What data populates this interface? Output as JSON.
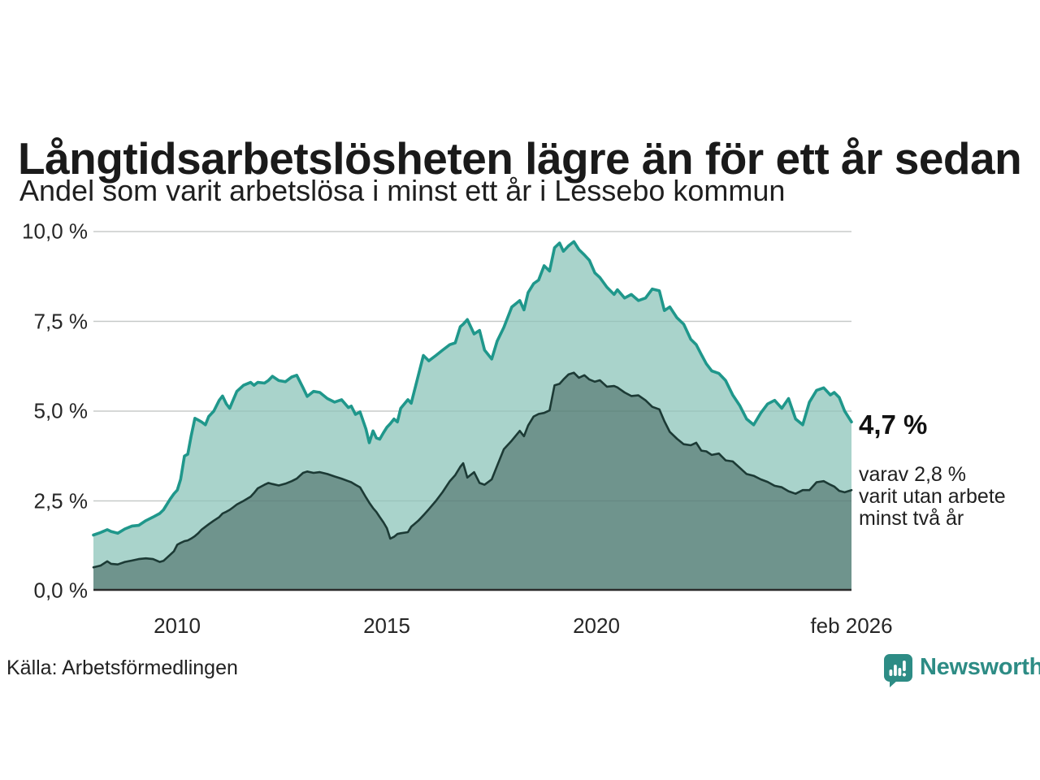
{
  "header": {
    "title": "Långtidsarbetslösheten lägre än för ett år sedan",
    "subtitle": "Andel som varit arbetslösa i minst ett år i Lessebo kommun"
  },
  "annotation": {
    "value_label": "4,7 %",
    "secondary_line1": "varav 2,8 %",
    "secondary_line2": "varit utan arbete",
    "secondary_line3": "minst två år"
  },
  "source": "Källa: Arbetsförmedlingen",
  "logo": {
    "text": "Newsworthy",
    "icon": "newsworthy-chart-bubble-icon",
    "color": "#2d8c85"
  },
  "colors": {
    "series1_line": "#1f978b",
    "series1_fill": "#a9d3cb",
    "series2_line": "#1c3a35",
    "series2_fill": "#6f948d",
    "gridline": "#d9d9d9",
    "axis": "#2b2b2b",
    "text": "#1a1a1a"
  },
  "chart_data": {
    "type": "area",
    "title": "Långtidsarbetslösheten lägre än för ett år sedan",
    "subtitle": "Andel som varit arbetslösa i minst ett år i Lessebo kommun",
    "xlabel": "",
    "ylabel": "",
    "xlim": [
      2008.0,
      2026.083
    ],
    "ylim": [
      0,
      10
    ],
    "grid": "horizontal",
    "y_ticks": [
      {
        "value": 10.0,
        "label": "10,0 %"
      },
      {
        "value": 7.5,
        "label": "7,5 %"
      },
      {
        "value": 5.0,
        "label": "5,0 %"
      },
      {
        "value": 2.5,
        "label": "2,5 %"
      },
      {
        "value": 0.0,
        "label": "0,0 %"
      }
    ],
    "x_ticks": [
      {
        "value": 2010,
        "label": "2010"
      },
      {
        "value": 2015,
        "label": "2015"
      },
      {
        "value": 2020,
        "label": "2020"
      },
      {
        "value": 2026.083,
        "label": "feb 2026"
      }
    ],
    "series": [
      {
        "name": "Arbetslösa minst ett år",
        "latest_value": 4.7,
        "line_color": "#1f978b",
        "fill_color": "#a9d3cb"
      },
      {
        "name": "Utan arbete minst två år",
        "latest_value": 2.8,
        "line_color": "#1c3a35",
        "fill_color": "#6f948d"
      }
    ],
    "points": [
      [
        2008.0,
        1.55,
        0.65
      ],
      [
        2008.17,
        1.62,
        0.7
      ],
      [
        2008.33,
        1.7,
        0.82
      ],
      [
        2008.42,
        1.65,
        0.75
      ],
      [
        2008.58,
        1.6,
        0.73
      ],
      [
        2008.75,
        1.72,
        0.8
      ],
      [
        2008.92,
        1.8,
        0.84
      ],
      [
        2009.08,
        1.82,
        0.88
      ],
      [
        2009.25,
        1.95,
        0.9
      ],
      [
        2009.42,
        2.05,
        0.88
      ],
      [
        2009.58,
        2.15,
        0.8
      ],
      [
        2009.67,
        2.25,
        0.83
      ],
      [
        2009.83,
        2.55,
        1.0
      ],
      [
        2009.92,
        2.7,
        1.1
      ],
      [
        2010.0,
        2.8,
        1.28
      ],
      [
        2010.08,
        3.1,
        1.33
      ],
      [
        2010.17,
        3.75,
        1.38
      ],
      [
        2010.25,
        3.8,
        1.4
      ],
      [
        2010.33,
        4.3,
        1.45
      ],
      [
        2010.42,
        4.8,
        1.52
      ],
      [
        2010.5,
        4.75,
        1.6
      ],
      [
        2010.58,
        4.7,
        1.7
      ],
      [
        2010.67,
        4.62,
        1.78
      ],
      [
        2010.75,
        4.85,
        1.85
      ],
      [
        2010.87,
        5.0,
        1.95
      ],
      [
        2011.0,
        5.3,
        2.05
      ],
      [
        2011.08,
        5.42,
        2.15
      ],
      [
        2011.17,
        5.2,
        2.2
      ],
      [
        2011.25,
        5.08,
        2.25
      ],
      [
        2011.33,
        5.3,
        2.32
      ],
      [
        2011.42,
        5.55,
        2.4
      ],
      [
        2011.58,
        5.72,
        2.5
      ],
      [
        2011.75,
        5.8,
        2.62
      ],
      [
        2011.83,
        5.72,
        2.72
      ],
      [
        2011.92,
        5.8,
        2.85
      ],
      [
        2012.08,
        5.78,
        2.95
      ],
      [
        2012.17,
        5.85,
        3.0
      ],
      [
        2012.27,
        5.97,
        2.97
      ],
      [
        2012.42,
        5.85,
        2.93
      ],
      [
        2012.58,
        5.82,
        2.98
      ],
      [
        2012.73,
        5.95,
        3.05
      ],
      [
        2012.85,
        6.0,
        3.12
      ],
      [
        2013.0,
        5.65,
        3.28
      ],
      [
        2013.1,
        5.41,
        3.32
      ],
      [
        2013.25,
        5.55,
        3.28
      ],
      [
        2013.4,
        5.52,
        3.3
      ],
      [
        2013.58,
        5.35,
        3.25
      ],
      [
        2013.75,
        5.25,
        3.18
      ],
      [
        2013.92,
        5.32,
        3.12
      ],
      [
        2014.08,
        5.1,
        3.05
      ],
      [
        2014.15,
        5.14,
        3.02
      ],
      [
        2014.25,
        4.91,
        2.95
      ],
      [
        2014.36,
        4.98,
        2.88
      ],
      [
        2014.5,
        4.5,
        2.6
      ],
      [
        2014.58,
        4.12,
        2.45
      ],
      [
        2014.67,
        4.45,
        2.3
      ],
      [
        2014.75,
        4.25,
        2.19
      ],
      [
        2014.83,
        4.22,
        2.05
      ],
      [
        2014.92,
        4.4,
        1.9
      ],
      [
        2015.0,
        4.55,
        1.74
      ],
      [
        2015.08,
        4.65,
        1.45
      ],
      [
        2015.17,
        4.78,
        1.5
      ],
      [
        2015.25,
        4.7,
        1.58
      ],
      [
        2015.33,
        5.08,
        1.6
      ],
      [
        2015.5,
        5.32,
        1.63
      ],
      [
        2015.58,
        5.22,
        1.78
      ],
      [
        2015.75,
        6.0,
        1.95
      ],
      [
        2015.87,
        6.55,
        2.1
      ],
      [
        2016.0,
        6.4,
        2.27
      ],
      [
        2016.17,
        6.55,
        2.5
      ],
      [
        2016.33,
        6.7,
        2.75
      ],
      [
        2016.5,
        6.85,
        3.05
      ],
      [
        2016.63,
        6.9,
        3.22
      ],
      [
        2016.75,
        7.35,
        3.45
      ],
      [
        2016.82,
        7.42,
        3.55
      ],
      [
        2016.92,
        7.55,
        3.15
      ],
      [
        2017.08,
        7.15,
        3.3
      ],
      [
        2017.21,
        7.25,
        3.0
      ],
      [
        2017.33,
        6.7,
        2.95
      ],
      [
        2017.5,
        6.45,
        3.1
      ],
      [
        2017.63,
        6.95,
        3.48
      ],
      [
        2017.79,
        7.33,
        3.94
      ],
      [
        2017.98,
        7.9,
        4.18
      ],
      [
        2018.17,
        8.08,
        4.45
      ],
      [
        2018.27,
        7.82,
        4.3
      ],
      [
        2018.37,
        8.3,
        4.6
      ],
      [
        2018.5,
        8.55,
        4.85
      ],
      [
        2018.62,
        8.65,
        4.92
      ],
      [
        2018.75,
        9.05,
        4.95
      ],
      [
        2018.88,
        8.9,
        5.02
      ],
      [
        2019.0,
        9.55,
        5.72
      ],
      [
        2019.12,
        9.68,
        5.76
      ],
      [
        2019.21,
        9.45,
        5.88
      ],
      [
        2019.33,
        9.6,
        6.02
      ],
      [
        2019.46,
        9.72,
        6.07
      ],
      [
        2019.58,
        9.5,
        5.93
      ],
      [
        2019.71,
        9.35,
        6.0
      ],
      [
        2019.83,
        9.2,
        5.88
      ],
      [
        2019.96,
        8.85,
        5.82
      ],
      [
        2020.08,
        8.72,
        5.86
      ],
      [
        2020.25,
        8.45,
        5.68
      ],
      [
        2020.42,
        8.25,
        5.7
      ],
      [
        2020.5,
        8.38,
        5.66
      ],
      [
        2020.67,
        8.15,
        5.52
      ],
      [
        2020.83,
        8.25,
        5.42
      ],
      [
        2021.0,
        8.08,
        5.44
      ],
      [
        2021.17,
        8.15,
        5.3
      ],
      [
        2021.33,
        8.4,
        5.12
      ],
      [
        2021.5,
        8.35,
        5.05
      ],
      [
        2021.62,
        7.8,
        4.72
      ],
      [
        2021.75,
        7.9,
        4.42
      ],
      [
        2021.92,
        7.6,
        4.23
      ],
      [
        2022.08,
        7.42,
        4.08
      ],
      [
        2022.25,
        7.0,
        4.05
      ],
      [
        2022.38,
        6.85,
        4.12
      ],
      [
        2022.5,
        6.58,
        3.9
      ],
      [
        2022.62,
        6.32,
        3.88
      ],
      [
        2022.75,
        6.12,
        3.78
      ],
      [
        2022.92,
        6.05,
        3.82
      ],
      [
        2023.08,
        5.85,
        3.63
      ],
      [
        2023.25,
        5.45,
        3.6
      ],
      [
        2023.42,
        5.15,
        3.42
      ],
      [
        2023.58,
        4.78,
        3.25
      ],
      [
        2023.75,
        4.62,
        3.2
      ],
      [
        2023.92,
        4.95,
        3.1
      ],
      [
        2024.08,
        5.2,
        3.03
      ],
      [
        2024.25,
        5.3,
        2.92
      ],
      [
        2024.42,
        5.08,
        2.88
      ],
      [
        2024.58,
        5.35,
        2.77
      ],
      [
        2024.75,
        4.78,
        2.7
      ],
      [
        2024.92,
        4.62,
        2.8
      ],
      [
        2025.08,
        5.25,
        2.8
      ],
      [
        2025.25,
        5.58,
        3.02
      ],
      [
        2025.42,
        5.65,
        3.05
      ],
      [
        2025.58,
        5.45,
        2.95
      ],
      [
        2025.67,
        5.52,
        2.9
      ],
      [
        2025.79,
        5.38,
        2.78
      ],
      [
        2025.92,
        5.0,
        2.74
      ],
      [
        2026.083,
        4.7,
        2.8
      ]
    ]
  }
}
